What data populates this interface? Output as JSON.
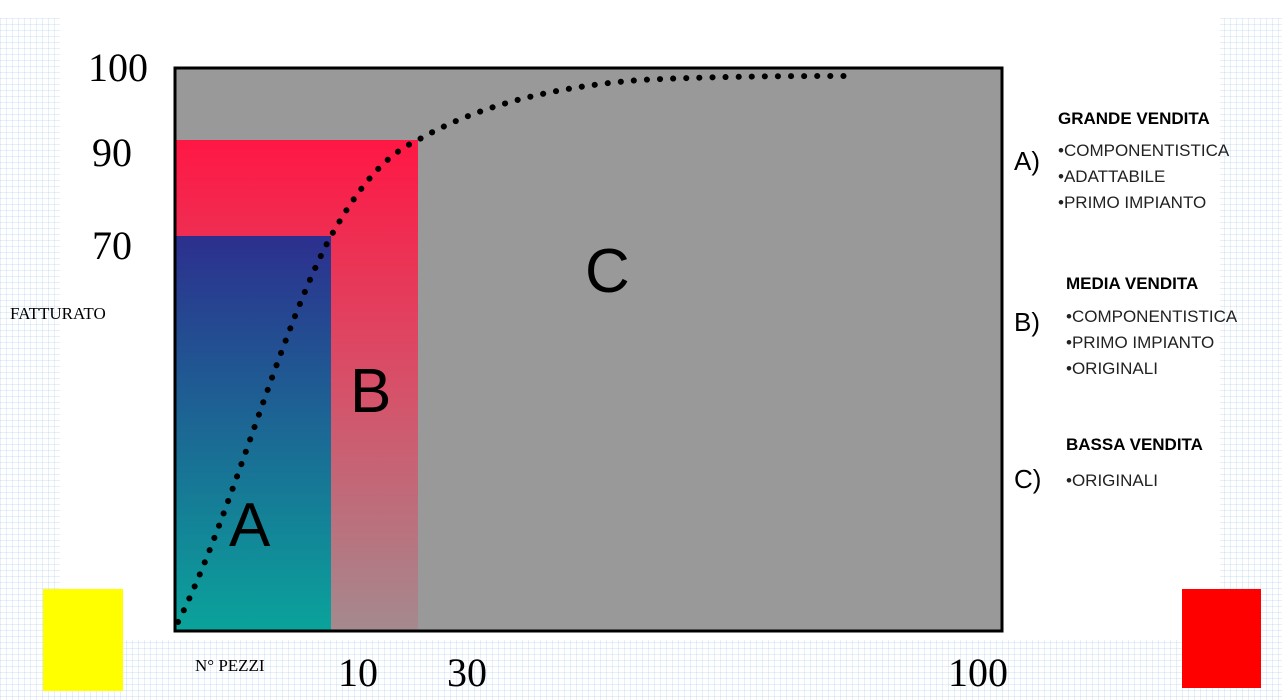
{
  "diagram": {
    "y_axis": {
      "label": "FATTURATO",
      "ticks": [
        "100",
        "90",
        "70"
      ]
    },
    "x_axis": {
      "label": "N° PEZZI",
      "ticks": [
        "10",
        "30",
        "100"
      ]
    },
    "zones": {
      "a": "A",
      "b": "B",
      "c": "C"
    }
  },
  "legend": {
    "a": {
      "marker": "A)",
      "title": "GRANDE VENDITA",
      "items": [
        "•COMPONENTISTICA",
        "•ADATTABILE",
        "•PRIMO IMPIANTO"
      ]
    },
    "b": {
      "marker": "B)",
      "title": "MEDIA VENDITA",
      "items": [
        "•COMPONENTISTICA",
        "•PRIMO IMPIANTO",
        "•ORIGINALI"
      ]
    },
    "c": {
      "marker": "C)",
      "title": "BASSA VENDITA",
      "items": [
        "•ORIGINALI"
      ]
    }
  },
  "colors": {
    "background_grid": "#a8c8e8",
    "plot_gray": "#999999",
    "zone_a_top": "#2c2f8e",
    "zone_a_bottom": "#0aa39b",
    "zone_b_top": "#ff1744",
    "zone_b_bottom": "#a48a8e",
    "yellow_square": "#ffff00",
    "red_square": "#ff0000",
    "curve": "#000000"
  }
}
